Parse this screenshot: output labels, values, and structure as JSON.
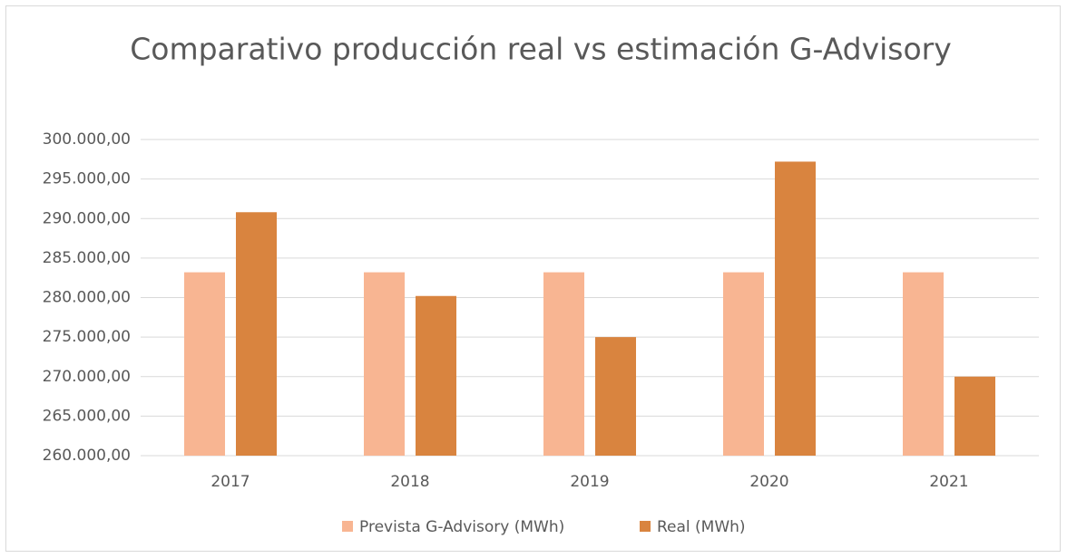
{
  "chart_data": {
    "type": "bar",
    "title": "Comparativo producción real vs estimación G-Advisory",
    "categories": [
      "2017",
      "2018",
      "2019",
      "2020",
      "2021"
    ],
    "series": [
      {
        "name": "Prevista G-Advisory (MWh)",
        "color": "#f8b592",
        "values": [
          283200,
          283200,
          283200,
          283200,
          283200
        ]
      },
      {
        "name": "Real (MWh)",
        "color": "#d9843f",
        "values": [
          290800,
          280200,
          275000,
          297200,
          270000
        ]
      }
    ],
    "ylim": [
      260000,
      300000
    ],
    "yticks": [
      {
        "value": 260000,
        "label": "260.000,00"
      },
      {
        "value": 265000,
        "label": "265.000,00"
      },
      {
        "value": 270000,
        "label": "270.000,00"
      },
      {
        "value": 275000,
        "label": "275.000,00"
      },
      {
        "value": 280000,
        "label": "280.000,00"
      },
      {
        "value": 285000,
        "label": "285.000,00"
      },
      {
        "value": 290000,
        "label": "290.000,00"
      },
      {
        "value": 295000,
        "label": "295.000,00"
      },
      {
        "value": 300000,
        "label": "300.000,00"
      }
    ],
    "grid": true,
    "legend": "bottom"
  }
}
